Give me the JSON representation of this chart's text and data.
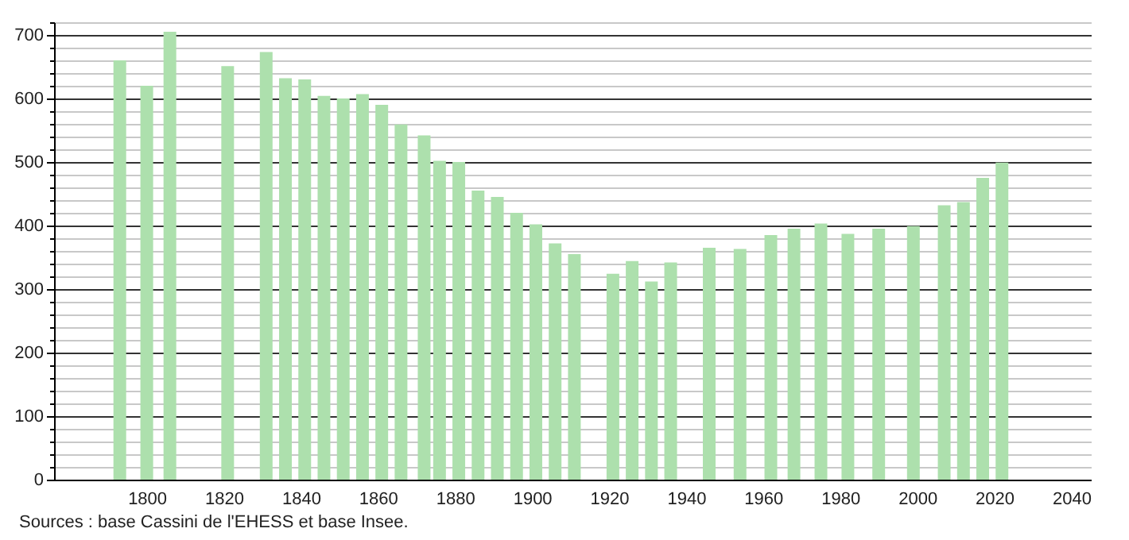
{
  "chart_data": {
    "type": "bar",
    "x": [
      1793,
      1800,
      1806,
      1821,
      1831,
      1836,
      1841,
      1846,
      1851,
      1856,
      1861,
      1866,
      1872,
      1876,
      1881,
      1886,
      1891,
      1896,
      1901,
      1906,
      1911,
      1921,
      1926,
      1931,
      1936,
      1946,
      1954,
      1962,
      1968,
      1975,
      1982,
      1990,
      1999,
      2007,
      2012,
      2017,
      2022
    ],
    "values": [
      660,
      620,
      705,
      651,
      673,
      632,
      630,
      604,
      600,
      607,
      590,
      559,
      542,
      502,
      500,
      455,
      445,
      420,
      402,
      372,
      355,
      324,
      344,
      312,
      342,
      365,
      363,
      385,
      395,
      403,
      387,
      395,
      399,
      432,
      437,
      475,
      499
    ],
    "color": "#ade0ad",
    "xlim": [
      1778,
      2043
    ],
    "xticks": [
      1800,
      1820,
      1840,
      1860,
      1880,
      1900,
      1920,
      1940,
      1960,
      1980,
      2000,
      2020,
      2040
    ],
    "ylim": [
      0,
      720
    ],
    "yticks": [
      0,
      {
        "value": 20,
        "label": null
      },
      {
        "value": 40,
        "label": null
      },
      {
        "value": 60,
        "label": null
      },
      {
        "value": 80,
        "label": null
      },
      100,
      {
        "value": 120,
        "label": null
      },
      {
        "value": 140,
        "label": null
      },
      {
        "value": 160,
        "label": null
      },
      {
        "value": 180,
        "label": null
      },
      200,
      {
        "value": 220,
        "label": null
      },
      {
        "value": 240,
        "label": null
      },
      {
        "value": 260,
        "label": null
      },
      {
        "value": 280,
        "label": null
      },
      300,
      {
        "value": 320,
        "label": null
      },
      {
        "value": 340,
        "label": null
      },
      {
        "value": 360,
        "label": null
      },
      {
        "value": 380,
        "label": null
      },
      400,
      {
        "value": 420,
        "label": null
      },
      {
        "value": 440,
        "label": null
      },
      {
        "value": 460,
        "label": null
      },
      {
        "value": 480,
        "label": null
      },
      500,
      {
        "value": 520,
        "label": null
      },
      {
        "value": 540,
        "label": null
      },
      {
        "value": 560,
        "label": null
      },
      {
        "value": 580,
        "label": null
      },
      600,
      {
        "value": 620,
        "label": null
      },
      {
        "value": 640,
        "label": null
      },
      {
        "value": 660,
        "label": null
      },
      {
        "value": 680,
        "label": null
      },
      700,
      {
        "value": 720,
        "label": null
      }
    ],
    "grid": "y",
    "annotations": [
      "Sources : base Cassini de l'EHESS et base Insee."
    ]
  }
}
